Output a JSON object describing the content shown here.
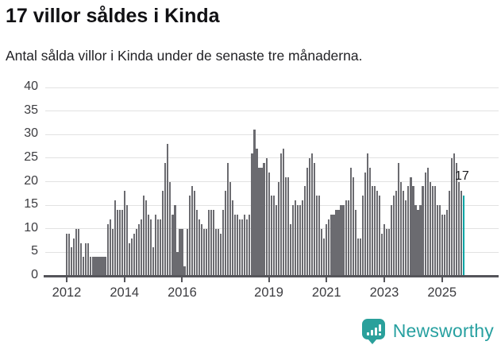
{
  "header": {
    "title": "17 villor såldes i Kinda",
    "subtitle": "Antal sålda villor i Kinda under de senaste tre månaderna."
  },
  "annotation": {
    "last_value_label": "17"
  },
  "footer": {
    "brand": "Newsworthy"
  },
  "colors": {
    "bar": "#6b6b70",
    "accent": "#0ba4a4",
    "axis": "#55555a",
    "gridline": "#e2e2e2",
    "brand": "#27a0a0"
  },
  "chart_data": {
    "type": "bar",
    "title": "17 villor såldes i Kinda",
    "subtitle": "Antal sålda villor i Kinda under de senaste tre månaderna.",
    "xlabel": "",
    "ylabel": "",
    "ylim": [
      0,
      40
    ],
    "yticks": [
      0,
      5,
      10,
      15,
      20,
      25,
      30,
      35,
      40
    ],
    "grid": true,
    "legend": "none",
    "start_month": "2012-01",
    "frequency": "monthly",
    "xticks": [
      {
        "label": "2012",
        "month_index": 0
      },
      {
        "label": "2014",
        "month_index": 24
      },
      {
        "label": "2016",
        "month_index": 48
      },
      {
        "label": "2019",
        "month_index": 84
      },
      {
        "label": "2021",
        "month_index": 108
      },
      {
        "label": "2023",
        "month_index": 132
      },
      {
        "label": "2025",
        "month_index": 156
      }
    ],
    "values": [
      9,
      9,
      6,
      8,
      10,
      10,
      7,
      4,
      7,
      7,
      4,
      4,
      4,
      4,
      4,
      4,
      4,
      11,
      12,
      10,
      16,
      14,
      14,
      14,
      18,
      15,
      7,
      8,
      9,
      10,
      11,
      12,
      17,
      16,
      13,
      12,
      6,
      13,
      12,
      12,
      18,
      24,
      28,
      20,
      13,
      15,
      5,
      10,
      10,
      2,
      10,
      17,
      19,
      18,
      14,
      12,
      11,
      10,
      10,
      14,
      14,
      14,
      10,
      10,
      9,
      14,
      18,
      24,
      20,
      16,
      13,
      13,
      12,
      12,
      13,
      12,
      13,
      26,
      31,
      27,
      23,
      23,
      24,
      25,
      22,
      17,
      17,
      15,
      20,
      26,
      27,
      21,
      21,
      11,
      15,
      16,
      15,
      15,
      16,
      19,
      23,
      25,
      26,
      24,
      17,
      17,
      10,
      8,
      11,
      12,
      13,
      13,
      14,
      14,
      15,
      15,
      16,
      16,
      23,
      21,
      14,
      8,
      8,
      17,
      22,
      26,
      23,
      19,
      19,
      18,
      17,
      9,
      11,
      10,
      10,
      15,
      17,
      18,
      24,
      20,
      18,
      16,
      19,
      21,
      19,
      15,
      14,
      15,
      19,
      22,
      23,
      20,
      19,
      19,
      15,
      15,
      13,
      13,
      14,
      18,
      25,
      26,
      24,
      20,
      18,
      17
    ],
    "highlight_last_bar": true,
    "highlight_value": 17,
    "highlight_color": "#0ba4a4"
  }
}
